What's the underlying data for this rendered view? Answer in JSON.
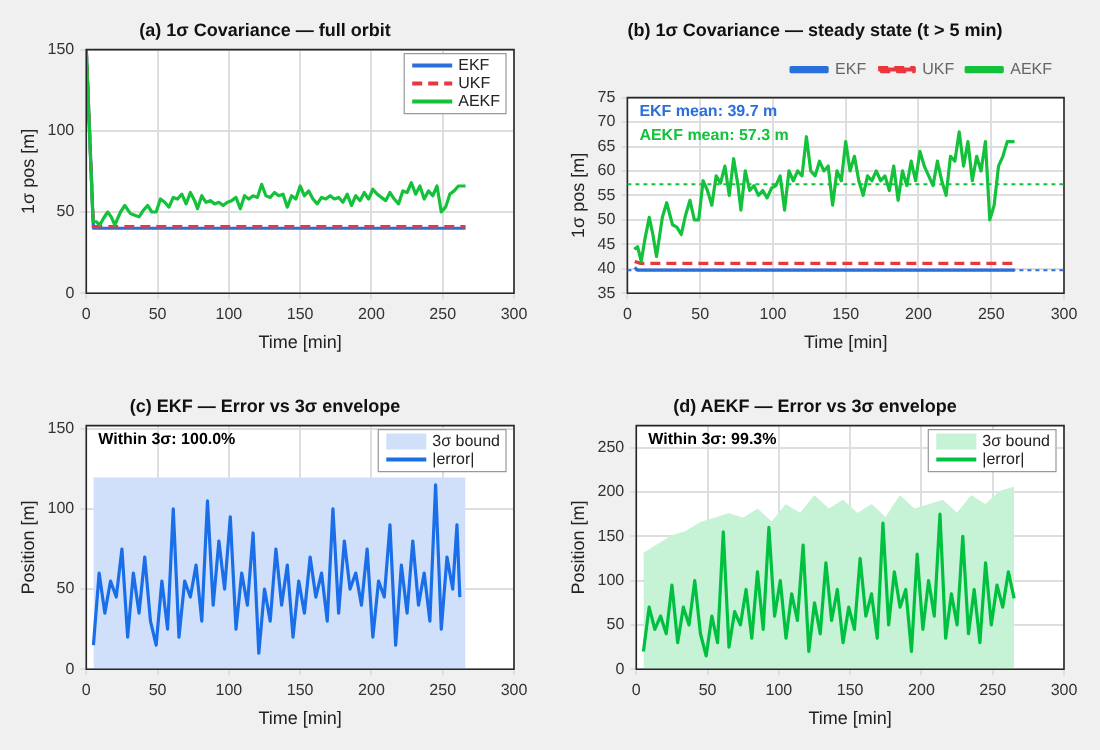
{
  "chart_data": [
    {
      "type": "line",
      "title": "(a) 1σ Covariance — full orbit",
      "xlabel": "Time [min]",
      "ylabel": "1σ pos [m]",
      "xlim": [
        0,
        300
      ],
      "xticks": [
        0,
        50,
        100,
        150,
        200,
        250,
        300
      ],
      "ylim": [
        0,
        150
      ],
      "yticks": [
        0,
        50,
        100,
        150
      ],
      "grid": true,
      "legend": "top right",
      "marker": "none",
      "series": [
        {
          "name": "EKF",
          "color": "#2a6fdb",
          "x": [
            0,
            5,
            266
          ],
          "values": [
            150,
            40,
            40
          ]
        },
        {
          "name": "UKF",
          "color": "#e8383d",
          "line_style": "dashed",
          "x": [
            0,
            5,
            266
          ],
          "values": [
            150,
            41,
            41
          ]
        },
        {
          "name": "AEKF",
          "color": "#13c23a",
          "x": [
            0,
            4.7,
            7,
            9.5,
            12,
            15,
            17.5,
            20,
            24,
            27,
            31,
            34,
            37,
            40,
            43,
            46,
            49,
            52,
            55,
            58,
            61,
            64,
            67,
            70,
            73,
            76,
            78,
            81,
            84,
            87,
            90,
            93,
            96,
            99,
            102,
            105,
            108,
            111,
            114,
            117,
            120,
            123,
            126,
            129,
            132,
            135,
            138,
            141,
            144,
            147,
            150,
            153,
            156,
            159,
            162,
            165,
            168,
            171,
            174,
            177,
            180,
            183,
            186,
            189,
            192,
            195,
            198,
            201,
            204,
            207,
            210,
            213,
            216,
            219,
            222,
            225,
            228,
            231,
            234,
            237,
            240,
            243,
            246,
            249,
            252,
            255,
            258,
            261,
            264,
            266
          ],
          "values": [
            150,
            44,
            44,
            42,
            46,
            50,
            47,
            42,
            50,
            54,
            49,
            48,
            47,
            51,
            54,
            50,
            50,
            58,
            56,
            53,
            59,
            58,
            61,
            55,
            62,
            57,
            52,
            60,
            56,
            57,
            55,
            56,
            54,
            56,
            57,
            59,
            52,
            60,
            58,
            60,
            59,
            67,
            60,
            59,
            62,
            60,
            61,
            53,
            60,
            58,
            66,
            60,
            63,
            58,
            55,
            59,
            58,
            60,
            58,
            59,
            56,
            61,
            54,
            60,
            57,
            62,
            58,
            64,
            61,
            59,
            57,
            62,
            58,
            55,
            63,
            62,
            68,
            61,
            66,
            58,
            63,
            60,
            66,
            50,
            53,
            61,
            63,
            66,
            66,
            66
          ]
        }
      ]
    },
    {
      "type": "line",
      "title": "(b) 1σ Covariance — steady state (t > 5 min)",
      "xlabel": "Time [min]",
      "ylabel": "1σ pos [m]",
      "xlim": [
        0,
        300
      ],
      "xticks": [
        0,
        50,
        100,
        150,
        200,
        250,
        300
      ],
      "ylim": [
        35,
        75
      ],
      "yticks": [
        35,
        40,
        45,
        50,
        55,
        60,
        65,
        70,
        75
      ],
      "grid": true,
      "legend": "top",
      "marker": "none",
      "ref_lines": [
        {
          "axis": "y",
          "value": 39.7,
          "label": "EKF mean: 39.7 m",
          "color": "#2a6fdb",
          "line_style": "dotted"
        },
        {
          "axis": "y",
          "value": 57.3,
          "label": "AEKF mean: 57.3 m",
          "color": "#13c23a",
          "line_style": "dotted"
        }
      ],
      "series": [
        {
          "name": "EKF",
          "color": "#2a6fdb",
          "x": [
            5,
            7,
            266
          ],
          "values": [
            40.3,
            39.7,
            39.7
          ]
        },
        {
          "name": "UKF",
          "color": "#e8383d",
          "line_style": "dashed",
          "x": [
            5,
            9,
            266
          ],
          "values": [
            41.5,
            41.1,
            41.1
          ]
        },
        {
          "name": "AEKF",
          "color": "#13c23a",
          "x": [
            4.7,
            7,
            9.5,
            12,
            15,
            17.5,
            20,
            24,
            27,
            31,
            34,
            37,
            40,
            43,
            46,
            49,
            52,
            55,
            58,
            61,
            64,
            67,
            70,
            73,
            76,
            78,
            81,
            84,
            87,
            90,
            93,
            96,
            99,
            102,
            105,
            108,
            111,
            114,
            117,
            120,
            123,
            126,
            129,
            132,
            135,
            138,
            141,
            144,
            147,
            150,
            153,
            156,
            159,
            162,
            165,
            168,
            171,
            174,
            177,
            180,
            183,
            186,
            189,
            192,
            195,
            198,
            201,
            204,
            207,
            210,
            213,
            216,
            219,
            222,
            225,
            228,
            231,
            234,
            237,
            240,
            243,
            246,
            249,
            252,
            255,
            258,
            261,
            264,
            266
          ],
          "values": [
            44,
            44.5,
            41.5,
            46,
            50.5,
            47,
            42.5,
            50.5,
            53.5,
            49,
            48.5,
            47,
            51,
            54,
            50,
            50,
            58,
            56,
            53,
            59,
            57.5,
            61,
            55,
            62.5,
            57,
            52,
            60,
            56,
            57,
            55,
            56,
            54.5,
            56.5,
            57,
            59,
            52,
            60,
            58,
            60,
            59,
            67,
            60,
            59,
            62,
            60,
            61,
            53,
            60,
            58,
            66,
            60,
            63,
            58,
            55,
            59,
            58,
            60,
            58,
            59,
            56,
            61,
            54,
            60,
            57,
            62,
            58,
            64,
            61,
            59,
            57,
            62,
            58,
            55,
            63,
            62,
            68,
            61,
            66,
            58,
            63,
            60,
            66,
            50,
            53,
            61,
            63,
            66,
            66,
            66
          ]
        }
      ]
    },
    {
      "type": "line",
      "title": "(c) EKF — Error vs 3σ envelope",
      "xlabel": "Time [min]",
      "ylabel": "Position [m]",
      "xlim": [
        0,
        300
      ],
      "xticks": [
        0,
        50,
        100,
        150,
        200,
        250,
        300
      ],
      "ylim": [
        0,
        152
      ],
      "yticks": [
        0,
        50,
        100,
        150
      ],
      "grid": true,
      "legend": "top right",
      "marker": "none",
      "annotations": [
        "Within 3σ: 100.0%"
      ],
      "series": [
        {
          "name": "3σ bound",
          "type": "area",
          "color": "#d0e0fb",
          "x": [
            5,
            266
          ],
          "values": [
            119,
            119
          ]
        },
        {
          "name": "|error|",
          "color": "#1a6ee8",
          "x": [
            5,
            9,
            13,
            17,
            21,
            25,
            29,
            33,
            37,
            41,
            45,
            49,
            53,
            57,
            61,
            65,
            69,
            73,
            77,
            81,
            85,
            89,
            93,
            97,
            101,
            105,
            109,
            113,
            117,
            121,
            125,
            129,
            133,
            137,
            141,
            145,
            149,
            153,
            157,
            161,
            165,
            169,
            173,
            177,
            181,
            185,
            189,
            193,
            197,
            201,
            205,
            209,
            213,
            217,
            221,
            225,
            229,
            233,
            237,
            241,
            245,
            249,
            253,
            257,
            260,
            262
          ],
          "values": [
            15,
            60,
            35,
            55,
            45,
            75,
            20,
            60,
            35,
            70,
            30,
            15,
            55,
            25,
            100,
            20,
            55,
            45,
            65,
            30,
            105,
            40,
            80,
            50,
            95,
            25,
            60,
            40,
            85,
            10,
            50,
            30,
            75,
            40,
            65,
            20,
            55,
            35,
            70,
            45,
            60,
            30,
            100,
            35,
            80,
            50,
            60,
            40,
            75,
            20,
            55,
            45,
            90,
            15,
            65,
            35,
            80,
            40,
            60,
            30,
            115,
            25,
            70,
            50,
            90,
            45
          ]
        }
      ]
    },
    {
      "type": "line",
      "title": "(d) AEKF — Error vs 3σ envelope",
      "xlabel": "Time [min]",
      "ylabel": "Position [m]",
      "xlim": [
        0,
        300
      ],
      "xticks": [
        0,
        50,
        100,
        150,
        200,
        250,
        300
      ],
      "ylim": [
        0,
        275
      ],
      "yticks": [
        0,
        50,
        100,
        150,
        200,
        250
      ],
      "grid": true,
      "legend": "top right",
      "marker": "none",
      "annotations": [
        "Within 3σ: 99.3%"
      ],
      "series": [
        {
          "name": "3σ bound",
          "type": "area",
          "color": "#c6f2d6",
          "x": [
            5,
            15,
            25,
            35,
            45,
            55,
            65,
            75,
            85,
            95,
            105,
            115,
            125,
            135,
            145,
            155,
            165,
            175,
            185,
            195,
            205,
            215,
            225,
            235,
            245,
            255,
            265
          ],
          "values": [
            130,
            140,
            150,
            155,
            165,
            170,
            175,
            170,
            180,
            165,
            185,
            175,
            195,
            180,
            190,
            175,
            185,
            170,
            195,
            180,
            185,
            190,
            175,
            195,
            185,
            200,
            205
          ]
        },
        {
          "name": "|error|",
          "color": "#00c040",
          "x": [
            5,
            9,
            13,
            17,
            21,
            25,
            29,
            33,
            37,
            41,
            45,
            49,
            53,
            57,
            61,
            65,
            69,
            73,
            77,
            81,
            85,
            89,
            93,
            97,
            101,
            105,
            109,
            113,
            117,
            121,
            125,
            129,
            133,
            137,
            141,
            145,
            149,
            153,
            157,
            161,
            165,
            169,
            173,
            177,
            181,
            185,
            189,
            193,
            197,
            201,
            205,
            209,
            213,
            217,
            221,
            225,
            229,
            233,
            237,
            241,
            245,
            249,
            253,
            257,
            261,
            265
          ],
          "values": [
            20,
            70,
            45,
            60,
            40,
            95,
            30,
            70,
            50,
            100,
            40,
            15,
            60,
            30,
            155,
            25,
            65,
            50,
            90,
            35,
            110,
            45,
            160,
            60,
            100,
            35,
            85,
            55,
            140,
            20,
            75,
            40,
            120,
            55,
            90,
            30,
            70,
            45,
            125,
            60,
            85,
            35,
            165,
            50,
            110,
            70,
            90,
            20,
            130,
            45,
            100,
            60,
            175,
            35,
            85,
            50,
            150,
            40,
            90,
            30,
            120,
            50,
            95,
            70,
            110,
            80
          ]
        }
      ]
    }
  ]
}
